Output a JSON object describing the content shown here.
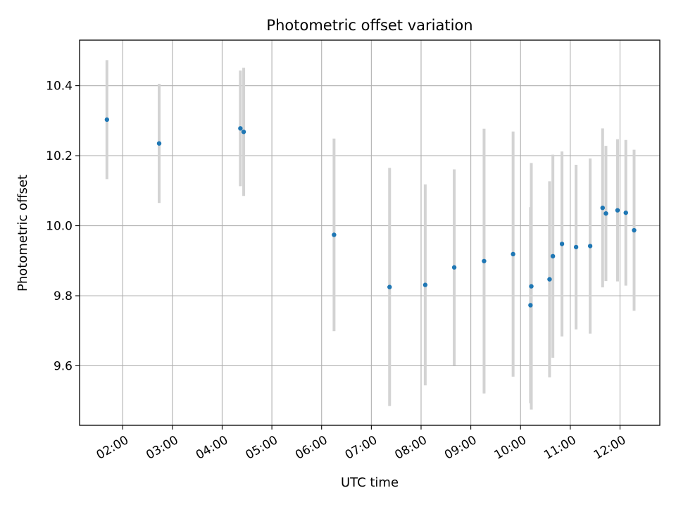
{
  "chart_data": {
    "type": "scatter",
    "title": "Photometric offset variation",
    "xlabel": "UTC time",
    "ylabel": "Photometric offset",
    "grid": true,
    "x_ticks": [
      "02:00",
      "03:00",
      "04:00",
      "05:00",
      "06:00",
      "07:00",
      "08:00",
      "09:00",
      "10:00",
      "11:00",
      "12:00"
    ],
    "y_ticks": [
      "9.6",
      "9.8",
      "10.0",
      "10.2",
      "10.4"
    ],
    "xlim": [
      "01:08",
      "12:48"
    ],
    "ylim": [
      9.43,
      10.53
    ],
    "colors": {
      "point": "#1f77b4",
      "errorbar": "#d3d3d3",
      "grid": "#b0b0b0"
    },
    "series": [
      {
        "points": [
          {
            "x": "01:41",
            "y": 10.303,
            "err": 0.17
          },
          {
            "x": "02:44",
            "y": 10.235,
            "err": 0.17
          },
          {
            "x": "04:22",
            "y": 10.278,
            "err": 0.165
          },
          {
            "x": "04:26",
            "y": 10.268,
            "err": 0.183
          },
          {
            "x": "06:15",
            "y": 9.974,
            "err": 0.275
          },
          {
            "x": "07:22",
            "y": 9.825,
            "err": 0.34
          },
          {
            "x": "08:05",
            "y": 9.831,
            "err": 0.287
          },
          {
            "x": "08:40",
            "y": 9.881,
            "err": 0.28
          },
          {
            "x": "09:16",
            "y": 9.899,
            "err": 0.378
          },
          {
            "x": "09:51",
            "y": 9.919,
            "err": 0.35
          },
          {
            "x": "10:12",
            "y": 9.773,
            "err": 0.28
          },
          {
            "x": "10:13",
            "y": 9.827,
            "err": 0.352
          },
          {
            "x": "10:35",
            "y": 9.847,
            "err": 0.28
          },
          {
            "x": "10:39",
            "y": 9.913,
            "err": 0.29
          },
          {
            "x": "10:50",
            "y": 9.948,
            "err": 0.264
          },
          {
            "x": "11:07",
            "y": 9.939,
            "err": 0.235
          },
          {
            "x": "11:24",
            "y": 9.942,
            "err": 0.25
          },
          {
            "x": "11:39",
            "y": 10.051,
            "err": 0.227
          },
          {
            "x": "11:43",
            "y": 10.035,
            "err": 0.193
          },
          {
            "x": "11:57",
            "y": 10.044,
            "err": 0.203
          },
          {
            "x": "12:07",
            "y": 10.037,
            "err": 0.208
          },
          {
            "x": "12:17",
            "y": 9.987,
            "err": 0.23
          }
        ]
      }
    ]
  }
}
